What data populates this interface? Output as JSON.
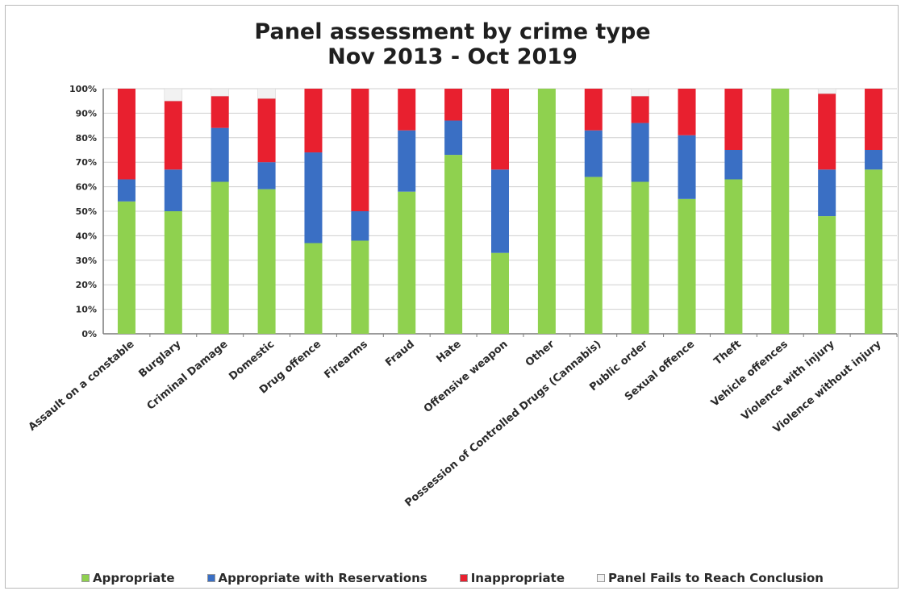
{
  "chart_data": {
    "type": "bar",
    "stacked": true,
    "percent": true,
    "title": "Panel assessment by crime type",
    "subtitle": "Nov 2013 - Oct 2019",
    "xlabel": "",
    "ylabel": "",
    "ylim": [
      0,
      100
    ],
    "y_ticks": [
      "0%",
      "10%",
      "20%",
      "30%",
      "40%",
      "50%",
      "60%",
      "70%",
      "80%",
      "90%",
      "100%"
    ],
    "grid": true,
    "legend_position": "bottom",
    "categories": [
      "Assault on a constable",
      "Burglary",
      "Criminal Damage",
      "Domestic",
      "Drug offence",
      "Firearms",
      "Fraud",
      "Hate",
      "Offensive weapon",
      "Other",
      "Possession of Controlled Drugs (Cannabis)",
      "Public order",
      "Sexual offence",
      "Theft",
      "Vehicle offences",
      "Violence with injury",
      "Violence without injury"
    ],
    "series": [
      {
        "name": "Appropriate",
        "color": "#8fd14f",
        "values": [
          54,
          50,
          62,
          59,
          37,
          38,
          58,
          73,
          33,
          100,
          64,
          62,
          55,
          63,
          100,
          48,
          67
        ]
      },
      {
        "name": "Appropriate with Reservations",
        "color": "#3a6fc4",
        "values": [
          9,
          17,
          22,
          11,
          37,
          12,
          25,
          14,
          34,
          0,
          19,
          24,
          26,
          12,
          0,
          19,
          8
        ]
      },
      {
        "name": "Inappropriate",
        "color": "#e8202f",
        "values": [
          37,
          28,
          13,
          26,
          26,
          50,
          17,
          13,
          33,
          0,
          17,
          11,
          19,
          25,
          0,
          31,
          25
        ]
      },
      {
        "name": "Panel Fails to Reach Conclusion",
        "color": "#f2f2f2",
        "values": [
          0,
          5,
          3,
          4,
          0,
          0,
          0,
          0,
          0,
          0,
          0,
          3,
          0,
          0,
          0,
          2,
          0
        ]
      }
    ]
  }
}
